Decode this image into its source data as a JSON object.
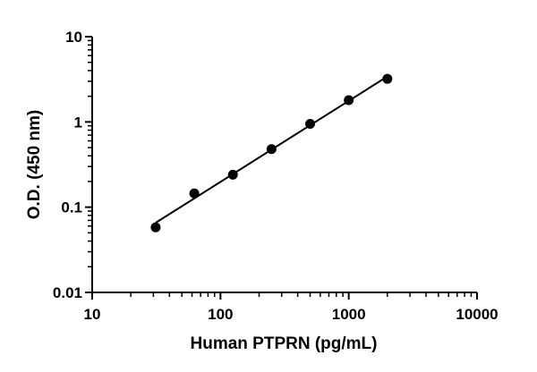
{
  "chart_data": {
    "type": "scatter",
    "xlabel": "Human PTPRN (pg/mL)",
    "ylabel": "O.D. (450 nm)",
    "xscale": "log",
    "yscale": "log",
    "xlim": [
      10,
      10000
    ],
    "ylim": [
      0.01,
      10
    ],
    "x_ticks": [
      "10",
      "100",
      "1000",
      "10000"
    ],
    "y_ticks": [
      "0.01",
      "0.1",
      "1",
      "10"
    ],
    "grid": false,
    "legend": "none",
    "series": [
      {
        "x": [
          31.25,
          62.5,
          125,
          250,
          500,
          1000,
          2000
        ],
        "y": [
          0.058,
          0.145,
          0.24,
          0.48,
          0.95,
          1.8,
          3.2
        ],
        "fit_line": true
      }
    ],
    "colors": {
      "marker": "#000000",
      "line": "#000000",
      "axis": "#000000"
    }
  }
}
